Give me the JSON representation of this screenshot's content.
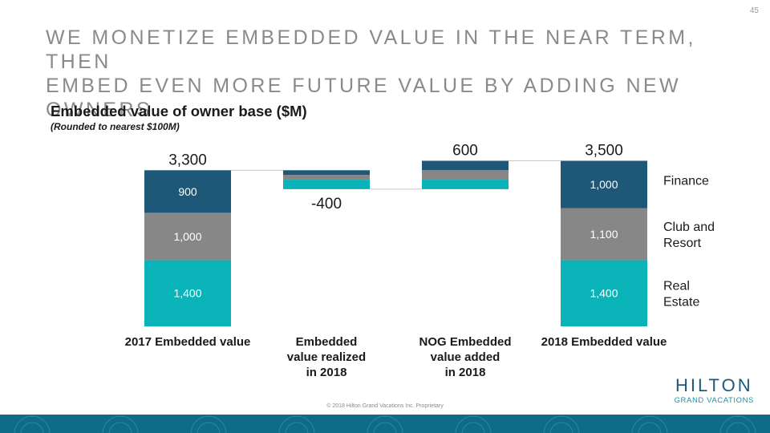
{
  "page": {
    "number": "45",
    "title_lines": [
      "WE MONETIZE EMBEDDED VALUE IN THE NEAR TERM, THEN",
      "EMBED EVEN MORE FUTURE VALUE BY ADDING NEW OWNERS"
    ],
    "copyright": "© 2018 Hilton Grand Vacations Inc. Proprietary"
  },
  "logo": {
    "main": "HILTON",
    "sub": "GRAND VACATIONS"
  },
  "colors": {
    "finance": "#1d5878",
    "club": "#878787",
    "real_estate": "#0ab3b8",
    "connector": "#c8c8c8",
    "footer": "#0e6c88"
  },
  "chart_data": {
    "type": "bar",
    "subtype": "waterfall",
    "title": "Embedded value of owner base ($M)",
    "subtitle": "(Rounded to nearest $100M)",
    "categories": [
      "2017 Embedded value",
      "Embedded value realized in 2018",
      "NOG Embedded value added in 2018",
      "2018 Embedded value"
    ],
    "category_lines": [
      [
        "2017 Embedded value"
      ],
      [
        "Embedded",
        "value realized",
        "in 2018"
      ],
      [
        "NOG Embedded",
        "value added",
        "in 2018"
      ],
      [
        "2018 Embedded value"
      ]
    ],
    "series": [
      {
        "name": "Real Estate",
        "legend_lines": [
          "Real",
          "Estate"
        ],
        "color_key": "real_estate",
        "values": [
          1400,
          null,
          null,
          1400
        ],
        "labels": [
          "1,400",
          "",
          "",
          "1,400"
        ]
      },
      {
        "name": "Club and Resort",
        "legend_lines": [
          "Club and",
          "Resort"
        ],
        "color_key": "club",
        "values": [
          1000,
          null,
          null,
          1100
        ],
        "labels": [
          "1,000",
          "",
          "",
          "1,100"
        ]
      },
      {
        "name": "Finance",
        "legend_lines": [
          "Finance"
        ],
        "color_key": "finance",
        "values": [
          900,
          null,
          null,
          1000
        ],
        "labels": [
          "900",
          "",
          "",
          "1,000"
        ]
      }
    ],
    "totals": [
      3300,
      -400,
      600,
      3500
    ],
    "total_labels": [
      "3,300",
      "-400",
      "600",
      "3,500"
    ],
    "delta_segments": [
      null,
      {
        "real_estate": 200,
        "club": 100,
        "finance": 100
      },
      {
        "real_estate": 200,
        "club": 200,
        "finance": 200
      },
      null
    ],
    "ylim": [
      0,
      3700
    ],
    "legend_position": "right",
    "grid": false
  }
}
